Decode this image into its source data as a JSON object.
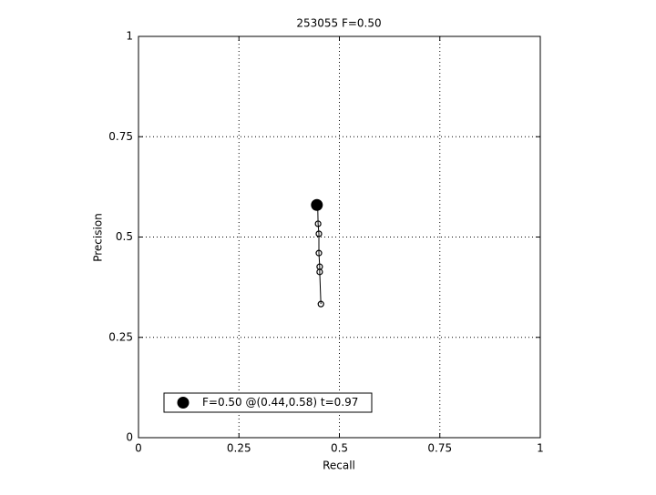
{
  "chart_data": {
    "type": "line",
    "title": "253055 F=0.50",
    "xlabel": "Recall",
    "ylabel": "Precision",
    "xlim": [
      0,
      1
    ],
    "ylim": [
      0,
      1
    ],
    "xticks": [
      0,
      0.25,
      0.5,
      0.75,
      1
    ],
    "yticks": [
      0,
      0.25,
      0.5,
      0.75,
      1
    ],
    "grid": true,
    "legend": "lower left",
    "series": [
      {
        "x": [
          0.446,
          0.447,
          0.449,
          0.449,
          0.451,
          0.451,
          0.454
        ],
        "values": [
          0.578,
          0.533,
          0.508,
          0.46,
          0.426,
          0.413,
          0.333
        ],
        "color": "#000000",
        "marker": "open-circle"
      },
      {
        "name": "F=0.50 @(0.44,0.58) t=0.97",
        "x": [
          0.444
        ],
        "values": [
          0.58
        ],
        "color": "#000000",
        "marker": "filled-circle"
      }
    ]
  }
}
